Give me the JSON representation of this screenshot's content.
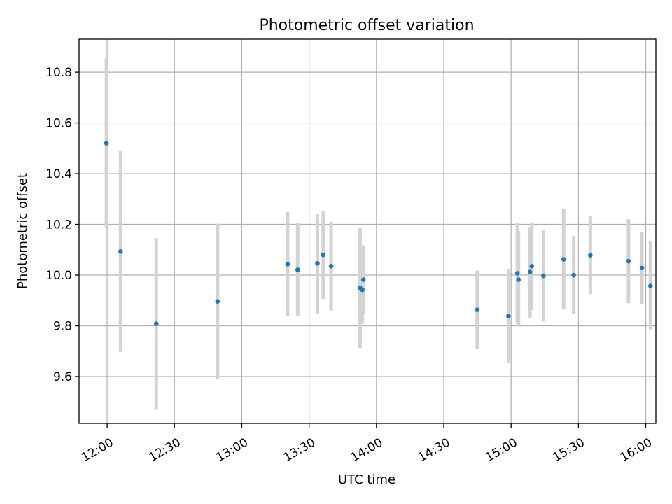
{
  "chart_data": {
    "type": "scatter",
    "title": "Photometric offset variation",
    "xlabel": "UTC time",
    "ylabel": "Photometric offset",
    "xlim_minutes": [
      707.5,
      964.5
    ],
    "ylim": [
      9.415,
      10.93
    ],
    "grid": true,
    "x_ticks": [
      {
        "label": "12:00",
        "minutes": 720
      },
      {
        "label": "12:30",
        "minutes": 750
      },
      {
        "label": "13:00",
        "minutes": 780
      },
      {
        "label": "13:30",
        "minutes": 810
      },
      {
        "label": "14:00",
        "minutes": 840
      },
      {
        "label": "14:30",
        "minutes": 870
      },
      {
        "label": "15:00",
        "minutes": 900
      },
      {
        "label": "15:30",
        "minutes": 930
      },
      {
        "label": "16:00",
        "minutes": 960
      }
    ],
    "y_ticks": [
      {
        "label": "9.6",
        "value": 9.6
      },
      {
        "label": "9.8",
        "value": 9.8
      },
      {
        "label": "10.0",
        "value": 10.0
      },
      {
        "label": "10.2",
        "value": 10.2
      },
      {
        "label": "10.4",
        "value": 10.4
      },
      {
        "label": "10.6",
        "value": 10.6
      },
      {
        "label": "10.8",
        "value": 10.8
      }
    ],
    "points": [
      {
        "time": "11:59",
        "minutes": 719.7,
        "y": 10.52,
        "err_low": 10.185,
        "err_high": 10.855
      },
      {
        "time": "12:06",
        "minutes": 726.0,
        "y": 10.093,
        "err_low": 9.697,
        "err_high": 10.49
      },
      {
        "time": "12:22",
        "minutes": 741.9,
        "y": 9.808,
        "err_low": 9.468,
        "err_high": 10.146
      },
      {
        "time": "12:49",
        "minutes": 769.2,
        "y": 9.896,
        "err_low": 9.59,
        "err_high": 10.203
      },
      {
        "time": "13:20",
        "minutes": 800.4,
        "y": 10.043,
        "err_low": 9.837,
        "err_high": 10.249
      },
      {
        "time": "13:25",
        "minutes": 804.9,
        "y": 10.021,
        "err_low": 9.84,
        "err_high": 10.205
      },
      {
        "time": "13:34",
        "minutes": 813.7,
        "y": 10.046,
        "err_low": 9.848,
        "err_high": 10.243
      },
      {
        "time": "13:36",
        "minutes": 816.3,
        "y": 10.08,
        "err_low": 9.906,
        "err_high": 10.253
      },
      {
        "time": "13:39",
        "minutes": 819.8,
        "y": 10.035,
        "err_low": 9.86,
        "err_high": 10.21
      },
      {
        "time": "13:53",
        "minutes": 832.7,
        "y": 9.95,
        "err_low": 9.712,
        "err_high": 10.187
      },
      {
        "time": "13:54",
        "minutes": 833.7,
        "y": 9.942,
        "err_low": 9.808,
        "err_high": 10.117
      },
      {
        "time": "13:54",
        "minutes": 834.2,
        "y": 9.982,
        "err_low": 9.845,
        "err_high": 10.117
      },
      {
        "time": "14:45",
        "minutes": 884.9,
        "y": 9.863,
        "err_low": 9.709,
        "err_high": 10.018
      },
      {
        "time": "14:59",
        "minutes": 898.8,
        "y": 9.838,
        "err_low": 9.655,
        "err_high": 10.022
      },
      {
        "time": "15:03",
        "minutes": 902.8,
        "y": 10.007,
        "err_low": 9.808,
        "err_high": 10.205
      },
      {
        "time": "15:03",
        "minutes": 903.3,
        "y": 9.982,
        "err_low": 9.797,
        "err_high": 10.173
      },
      {
        "time": "15:08",
        "minutes": 908.4,
        "y": 10.012,
        "err_low": 9.832,
        "err_high": 10.19
      },
      {
        "time": "15:09",
        "minutes": 909.2,
        "y": 10.035,
        "err_low": 9.862,
        "err_high": 10.208
      },
      {
        "time": "15:14",
        "minutes": 914.4,
        "y": 9.997,
        "err_low": 9.817,
        "err_high": 10.177
      },
      {
        "time": "15:23",
        "minutes": 923.4,
        "y": 10.062,
        "err_low": 9.864,
        "err_high": 10.262
      },
      {
        "time": "15:28",
        "minutes": 927.9,
        "y": 10.0,
        "err_low": 9.846,
        "err_high": 10.154
      },
      {
        "time": "15:35",
        "minutes": 935.3,
        "y": 10.078,
        "err_low": 9.925,
        "err_high": 10.234
      },
      {
        "time": "15:52",
        "minutes": 952.3,
        "y": 10.055,
        "err_low": 9.889,
        "err_high": 10.22
      },
      {
        "time": "15:58",
        "minutes": 958.3,
        "y": 10.028,
        "err_low": 9.884,
        "err_high": 10.17
      },
      {
        "time": "16:02",
        "minutes": 962.1,
        "y": 9.957,
        "err_low": 9.784,
        "err_high": 10.134
      }
    ]
  }
}
